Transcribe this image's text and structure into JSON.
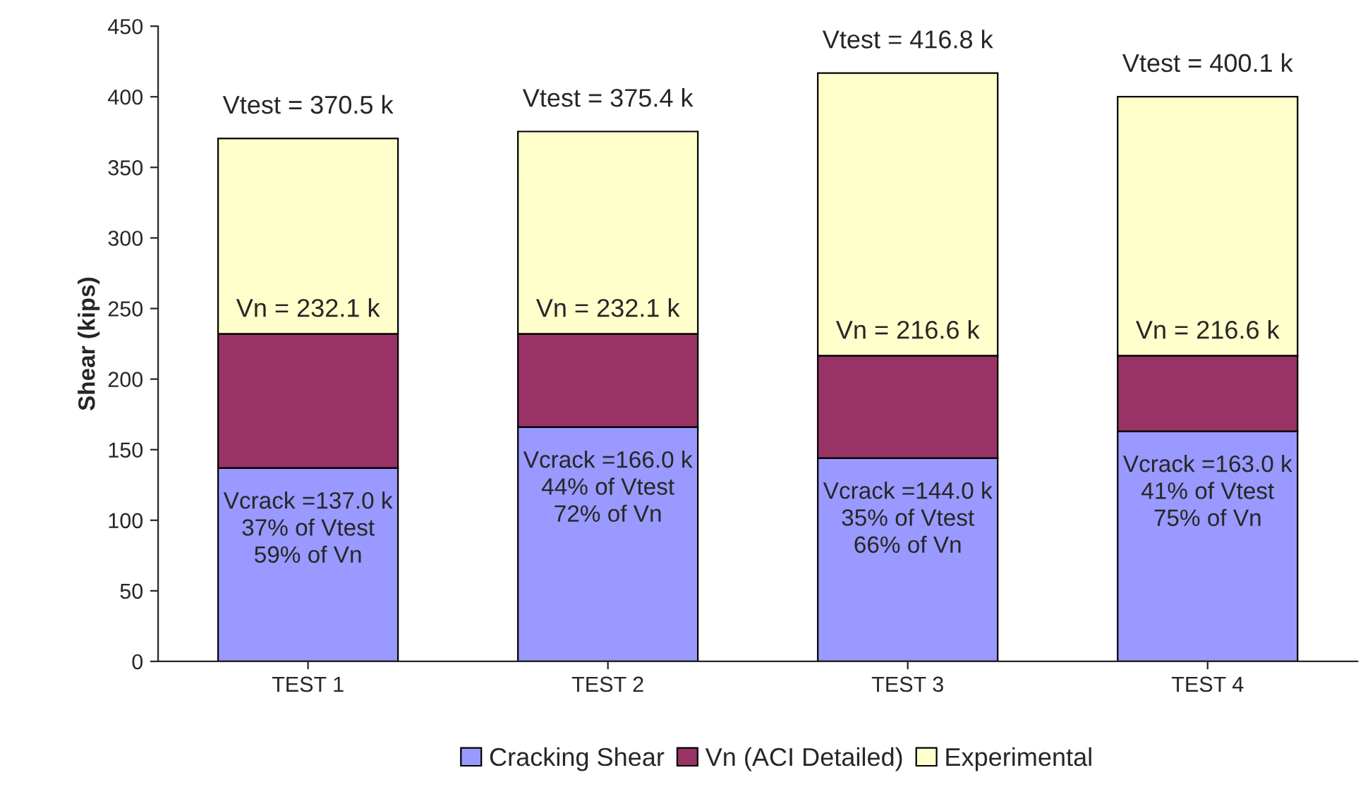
{
  "chart_data": {
    "type": "bar",
    "stacked": true,
    "ylabel": "Shear (kips)",
    "categories": [
      "TEST 1",
      "TEST 2",
      "TEST 3",
      "TEST 4"
    ],
    "series": [
      {
        "name": "Cracking Shear",
        "color": "#9999ff",
        "values": [
          137.0,
          166.0,
          144.0,
          163.0
        ]
      },
      {
        "name": "Vn (ACI Detailed)",
        "color": "#993366",
        "values": [
          95.1,
          66.1,
          72.6,
          53.6
        ]
      },
      {
        "name": "Experimental",
        "color": "#ffffcc",
        "values": [
          138.4,
          143.3,
          200.2,
          183.5
        ]
      }
    ],
    "ylim": [
      0,
      450
    ],
    "yticks": [
      0,
      50,
      100,
      150,
      200,
      250,
      300,
      350,
      400,
      450
    ],
    "grid": false,
    "legend": "bottom",
    "annotations": [
      {
        "text": "Vtest = 370.5 k",
        "x": "TEST 1",
        "y": 370.5
      },
      {
        "text": "Vtest = 375.4 k",
        "x": "TEST 2",
        "y": 375.4
      },
      {
        "text": "Vtest = 416.8 k",
        "x": "TEST 3",
        "y": 416.8
      },
      {
        "text": "Vtest = 400.1 k",
        "x": "TEST 4",
        "y": 400.1
      },
      {
        "text": "Vn = 232.1 k",
        "x": "TEST 1",
        "y": 232.1
      },
      {
        "text": "Vn = 232.1 k",
        "x": "TEST 2",
        "y": 232.1
      },
      {
        "text": "Vn = 216.6 k",
        "x": "TEST 3",
        "y": 216.6
      },
      {
        "text": "Vn = 216.6 k",
        "x": "TEST 4",
        "y": 216.6
      },
      {
        "text": "Vcrack =137.0 k\n37% of Vtest\n59% of Vn",
        "x": "TEST 1",
        "y": 137.0
      },
      {
        "text": "Vcrack =166.0 k\n44% of Vtest\n72% of Vn",
        "x": "TEST 2",
        "y": 166.0
      },
      {
        "text": "Vcrack =144.0 k\n35% of Vtest\n66% of Vn",
        "x": "TEST 3",
        "y": 144.0
      },
      {
        "text": "Vcrack =163.0 k\n41% of Vtest\n75% of Vn",
        "x": "TEST 4",
        "y": 163.0
      }
    ]
  }
}
